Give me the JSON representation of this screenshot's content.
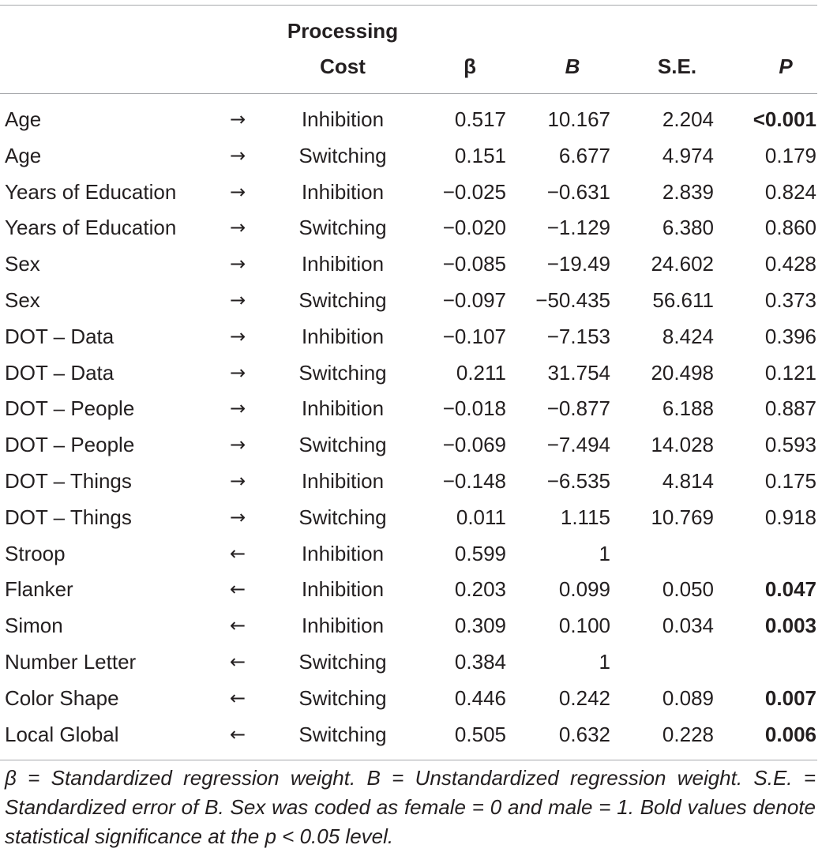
{
  "header": {
    "processing_line1": "Processing",
    "processing_line2": "Cost",
    "beta": "β",
    "B": "B",
    "se": "S.E.",
    "p": "P"
  },
  "rows": [
    {
      "label": "Age",
      "arrow": "→",
      "process": "Inhibition",
      "beta": "0.517",
      "B": "10.167",
      "se": "2.204",
      "p": "<0.001",
      "p_bold": true
    },
    {
      "label": "Age",
      "arrow": "→",
      "process": "Switching",
      "beta": "0.151",
      "B": "6.677",
      "se": "4.974",
      "p": "0.179",
      "p_bold": false
    },
    {
      "label": "Years of Education",
      "arrow": "→",
      "process": "Inhibition",
      "beta": "−0.025",
      "B": "−0.631",
      "se": "2.839",
      "p": "0.824",
      "p_bold": false
    },
    {
      "label": "Years of Education",
      "arrow": "→",
      "process": "Switching",
      "beta": "−0.020",
      "B": "−1.129",
      "se": "6.380",
      "p": "0.860",
      "p_bold": false
    },
    {
      "label": "Sex",
      "arrow": "→",
      "process": "Inhibition",
      "beta": "−0.085",
      "B": "−19.49",
      "se": "24.602",
      "p": "0.428",
      "p_bold": false
    },
    {
      "label": "Sex",
      "arrow": "→",
      "process": "Switching",
      "beta": "−0.097",
      "B": "−50.435",
      "se": "56.611",
      "p": "0.373",
      "p_bold": false
    },
    {
      "label": "DOT – Data",
      "arrow": "→",
      "process": "Inhibition",
      "beta": "−0.107",
      "B": "−7.153",
      "se": "8.424",
      "p": "0.396",
      "p_bold": false
    },
    {
      "label": "DOT – Data",
      "arrow": "→",
      "process": "Switching",
      "beta": "0.211",
      "B": "31.754",
      "se": "20.498",
      "p": "0.121",
      "p_bold": false
    },
    {
      "label": "DOT – People",
      "arrow": "→",
      "process": "Inhibition",
      "beta": "−0.018",
      "B": "−0.877",
      "se": "6.188",
      "p": "0.887",
      "p_bold": false
    },
    {
      "label": "DOT – People",
      "arrow": "→",
      "process": "Switching",
      "beta": "−0.069",
      "B": "−7.494",
      "se": "14.028",
      "p": "0.593",
      "p_bold": false
    },
    {
      "label": "DOT – Things",
      "arrow": "→",
      "process": "Inhibition",
      "beta": "−0.148",
      "B": "−6.535",
      "se": "4.814",
      "p": "0.175",
      "p_bold": false
    },
    {
      "label": "DOT – Things",
      "arrow": "→",
      "process": "Switching",
      "beta": "0.011",
      "B": "1.115",
      "se": "10.769",
      "p": "0.918",
      "p_bold": false
    },
    {
      "label": "Stroop",
      "arrow": "←",
      "process": "Inhibition",
      "beta": "0.599",
      "B": "1",
      "se": "",
      "p": "",
      "p_bold": false
    },
    {
      "label": "Flanker",
      "arrow": "←",
      "process": "Inhibition",
      "beta": "0.203",
      "B": "0.099",
      "se": "0.050",
      "p": "0.047",
      "p_bold": true
    },
    {
      "label": "Simon",
      "arrow": "←",
      "process": "Inhibition",
      "beta": "0.309",
      "B": "0.100",
      "se": "0.034",
      "p": "0.003",
      "p_bold": true
    },
    {
      "label": "Number Letter",
      "arrow": "←",
      "process": "Switching",
      "beta": "0.384",
      "B": "1",
      "se": "",
      "p": "",
      "p_bold": false
    },
    {
      "label": "Color Shape",
      "arrow": "←",
      "process": "Switching",
      "beta": "0.446",
      "B": "0.242",
      "se": "0.089",
      "p": "0.007",
      "p_bold": true
    },
    {
      "label": "Local Global",
      "arrow": "←",
      "process": "Switching",
      "beta": "0.505",
      "B": "0.632",
      "se": "0.228",
      "p": "0.006",
      "p_bold": true
    }
  ],
  "footnote": "β = Standardized regression weight. B = Unstandardized regression weight. S.E. = Standardized error of B. Sex was coded as female = 0 and male = 1. Bold values denote statistical significance at the p < 0.05 level."
}
